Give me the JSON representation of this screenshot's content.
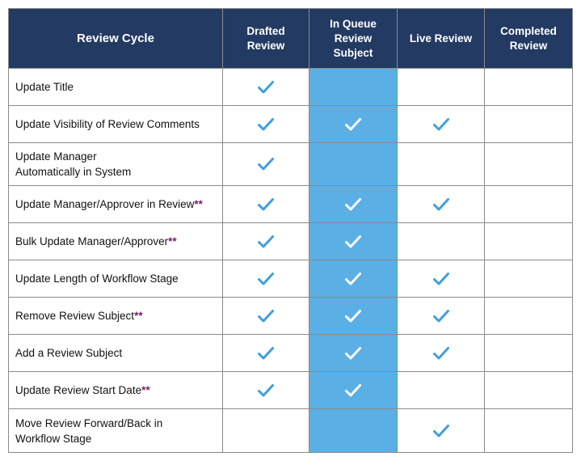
{
  "colors": {
    "header_bg": "#233a63",
    "header_text": "#ffffff",
    "highlight_column_bg": "#5aafe5",
    "check_blue": "#3f9fe0",
    "check_white": "#ffffff",
    "asterisk": "#7a1b6e"
  },
  "table": {
    "headers": [
      "Review Cycle",
      "Drafted\nReview",
      "In Queue\nReview\nSubject",
      "Live Review",
      "Completed\nReview"
    ],
    "highlight_column": 2,
    "check_icon": "checkmark-icon",
    "rows": [
      {
        "label": "Update Title",
        "stars": "",
        "checks": [
          true,
          false,
          false,
          false
        ],
        "height": "s"
      },
      {
        "label": "Update Visibility of Review Comments",
        "stars": "",
        "checks": [
          true,
          true,
          true,
          false
        ],
        "height": "s"
      },
      {
        "label": "Update Manager\nAutomatically in System",
        "stars": "",
        "checks": [
          true,
          false,
          false,
          false
        ],
        "height": "l"
      },
      {
        "label": "Update Manager/Approver in Review",
        "stars": "**",
        "checks": [
          true,
          true,
          true,
          false
        ],
        "height": "s"
      },
      {
        "label": "Bulk Update Manager/Approver",
        "stars": "**",
        "checks": [
          true,
          true,
          false,
          false
        ],
        "height": "s"
      },
      {
        "label": "Update Length of Workflow Stage",
        "stars": "",
        "checks": [
          true,
          true,
          true,
          false
        ],
        "height": "s"
      },
      {
        "label": "Remove Review Subject",
        "stars": "**",
        "checks": [
          true,
          true,
          true,
          false
        ],
        "height": "s"
      },
      {
        "label": "Add a Review Subject",
        "stars": "",
        "checks": [
          true,
          true,
          true,
          false
        ],
        "height": "s"
      },
      {
        "label": "Update Review Start Date",
        "stars": "**",
        "checks": [
          true,
          true,
          false,
          false
        ],
        "height": "s"
      },
      {
        "label": "Move Review Forward/Back in\nWorkflow Stage",
        "stars": "",
        "checks": [
          false,
          false,
          true,
          false
        ],
        "height": "x"
      }
    ]
  }
}
